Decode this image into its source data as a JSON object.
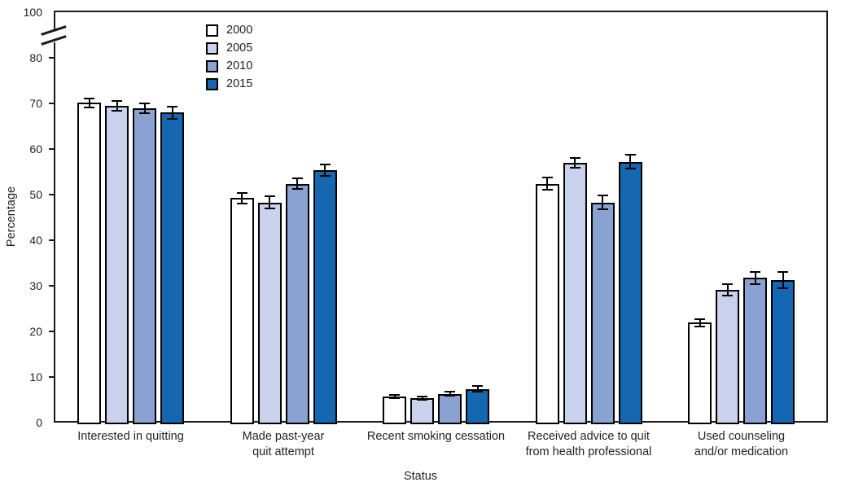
{
  "chart_data": {
    "type": "bar",
    "title": "",
    "xlabel": "Status",
    "ylabel": "Percentage",
    "ylim": [
      0,
      100
    ],
    "yticks": [
      0,
      10,
      20,
      30,
      40,
      50,
      60,
      70,
      80,
      100
    ],
    "axis_break": {
      "between": [
        80,
        100
      ]
    },
    "grid": false,
    "legend_position": "top-left-inside",
    "legend_entries": [
      "2000",
      "2005",
      "2010",
      "2015"
    ],
    "categories": [
      "Interested in quitting",
      "Made past-year\nquit attempt",
      "Recent smoking cessation",
      "Received advice to quit\nfrom health professional",
      "Used counseling\nand/or medication"
    ],
    "series": [
      {
        "name": "2000",
        "color": "#ffffff",
        "values": [
          70.1,
          49.2,
          5.7,
          52.4,
          21.9
        ],
        "errors": [
          1.2,
          1.3,
          0.5,
          1.5,
          1.0
        ]
      },
      {
        "name": "2005",
        "color": "#c9d2ec",
        "values": [
          69.5,
          48.3,
          5.4,
          57.0,
          29.1
        ],
        "errors": [
          1.2,
          1.5,
          0.5,
          1.3,
          1.4
        ]
      },
      {
        "name": "2010",
        "color": "#8aa2d2",
        "values": [
          68.9,
          52.4,
          6.3,
          48.3,
          31.7
        ],
        "errors": [
          1.2,
          1.3,
          0.6,
          1.7,
          1.5
        ]
      },
      {
        "name": "2015",
        "color": "#1467b0",
        "values": [
          68.0,
          55.4,
          7.4,
          57.2,
          31.2
        ],
        "errors": [
          1.5,
          1.4,
          0.8,
          1.7,
          2.0
        ]
      }
    ],
    "colors": {
      "axis": "#1a1a1a",
      "text": "#231f20",
      "background": "#ffffff"
    }
  }
}
